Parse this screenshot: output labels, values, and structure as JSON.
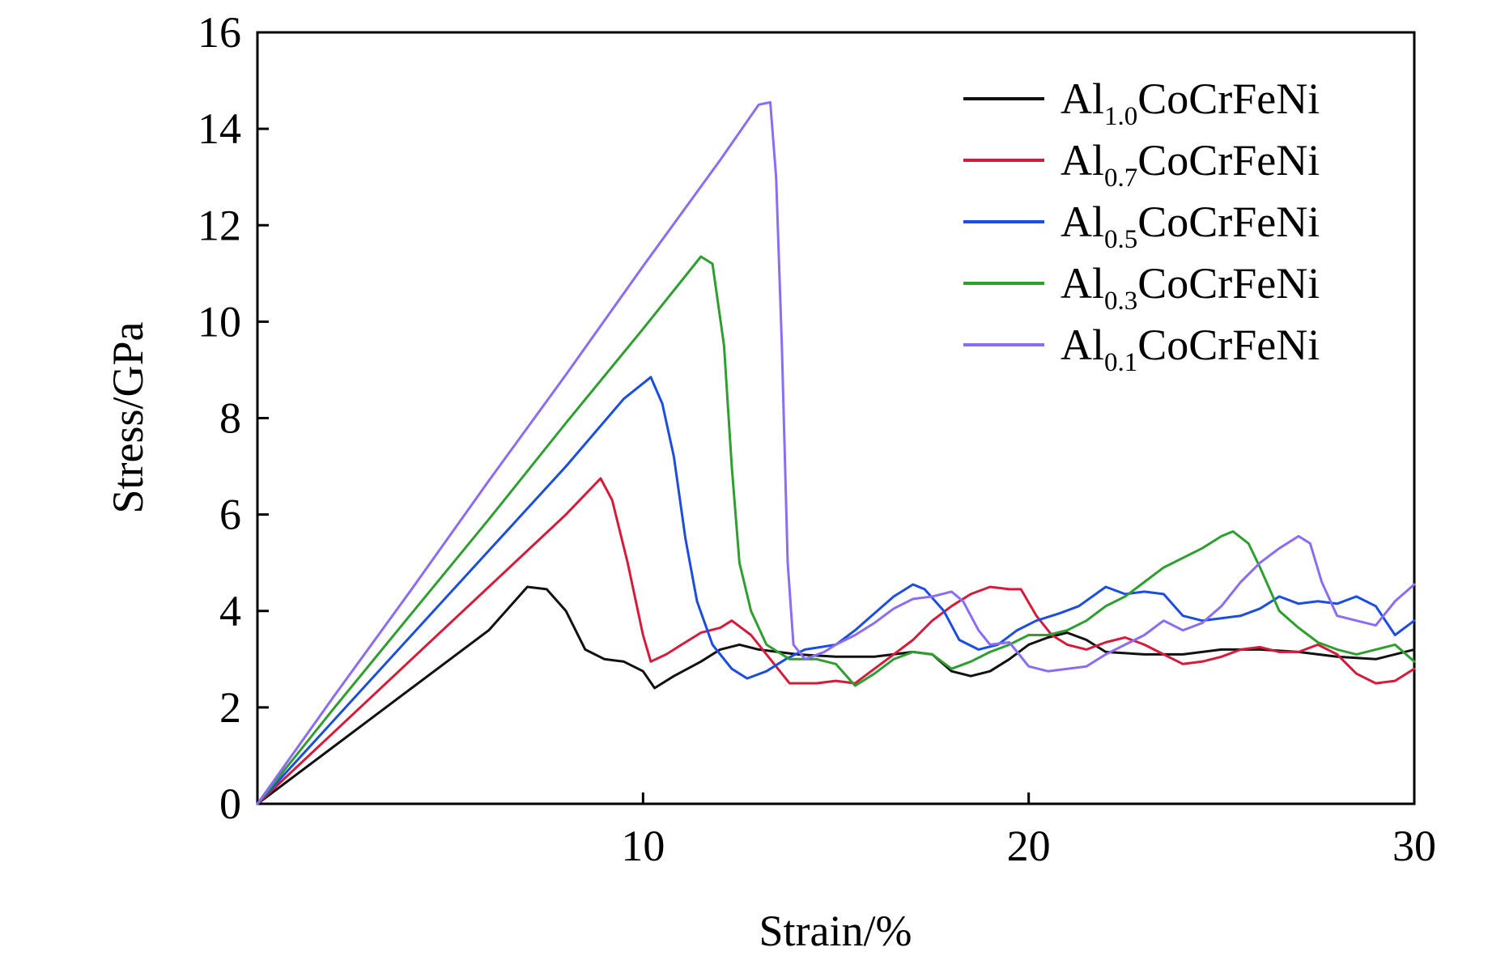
{
  "chart_data": {
    "type": "line",
    "title": "",
    "xlabel": "Strain/%",
    "ylabel": "Stress/GPa",
    "xlim": [
      0,
      30
    ],
    "ylim": [
      0,
      16
    ],
    "x_ticks": [
      10,
      20,
      30
    ],
    "y_ticks": [
      0,
      2,
      4,
      6,
      8,
      10,
      12,
      14,
      16
    ],
    "legend_position": "top-right",
    "series": [
      {
        "name": "Al1.0CoCrFeNi",
        "label_base": "Al",
        "label_sub": "1.0",
        "label_rest": "CoCrFeNi",
        "color": "#111111",
        "points": [
          [
            0,
            0
          ],
          [
            2,
            1.2
          ],
          [
            4,
            2.4
          ],
          [
            6,
            3.6
          ],
          [
            7,
            4.5
          ],
          [
            7.5,
            4.45
          ],
          [
            8,
            4.0
          ],
          [
            8.5,
            3.2
          ],
          [
            9,
            3.0
          ],
          [
            9.5,
            2.95
          ],
          [
            10,
            2.75
          ],
          [
            10.3,
            2.4
          ],
          [
            10.8,
            2.65
          ],
          [
            11.5,
            2.95
          ],
          [
            12,
            3.2
          ],
          [
            12.5,
            3.3
          ],
          [
            13,
            3.2
          ],
          [
            14,
            3.1
          ],
          [
            15,
            3.05
          ],
          [
            16,
            3.05
          ],
          [
            17,
            3.15
          ],
          [
            17.5,
            3.1
          ],
          [
            18,
            2.75
          ],
          [
            18.5,
            2.65
          ],
          [
            19,
            2.75
          ],
          [
            19.5,
            3.0
          ],
          [
            20,
            3.3
          ],
          [
            20.5,
            3.45
          ],
          [
            21,
            3.55
          ],
          [
            21.5,
            3.4
          ],
          [
            22,
            3.15
          ],
          [
            23,
            3.1
          ],
          [
            24,
            3.1
          ],
          [
            25,
            3.2
          ],
          [
            26,
            3.2
          ],
          [
            27,
            3.15
          ],
          [
            28,
            3.05
          ],
          [
            29,
            3.0
          ],
          [
            30,
            3.2
          ]
        ]
      },
      {
        "name": "Al0.7CoCrFeNi",
        "label_base": "Al",
        "label_sub": "0.7",
        "label_rest": "CoCrFeNi",
        "color": "#d41c3a",
        "points": [
          [
            0,
            0
          ],
          [
            2,
            1.5
          ],
          [
            4,
            3.0
          ],
          [
            6,
            4.5
          ],
          [
            8,
            6.0
          ],
          [
            8.9,
            6.75
          ],
          [
            9.2,
            6.3
          ],
          [
            9.6,
            5.0
          ],
          [
            10,
            3.5
          ],
          [
            10.2,
            2.95
          ],
          [
            10.6,
            3.1
          ],
          [
            11,
            3.3
          ],
          [
            11.5,
            3.55
          ],
          [
            12,
            3.65
          ],
          [
            12.3,
            3.8
          ],
          [
            12.8,
            3.5
          ],
          [
            13.2,
            3.1
          ],
          [
            13.8,
            2.5
          ],
          [
            14.5,
            2.5
          ],
          [
            15,
            2.55
          ],
          [
            15.5,
            2.5
          ],
          [
            16,
            2.8
          ],
          [
            16.5,
            3.1
          ],
          [
            17,
            3.4
          ],
          [
            17.5,
            3.8
          ],
          [
            18,
            4.1
          ],
          [
            18.5,
            4.35
          ],
          [
            19,
            4.5
          ],
          [
            19.5,
            4.45
          ],
          [
            19.8,
            4.45
          ],
          [
            20.2,
            3.9
          ],
          [
            20.6,
            3.5
          ],
          [
            21,
            3.3
          ],
          [
            21.5,
            3.2
          ],
          [
            22,
            3.35
          ],
          [
            22.5,
            3.45
          ],
          [
            23,
            3.3
          ],
          [
            23.5,
            3.1
          ],
          [
            24,
            2.9
          ],
          [
            24.5,
            2.95
          ],
          [
            25,
            3.05
          ],
          [
            25.5,
            3.2
          ],
          [
            26,
            3.25
          ],
          [
            26.5,
            3.15
          ],
          [
            27,
            3.15
          ],
          [
            27.5,
            3.3
          ],
          [
            28,
            3.1
          ],
          [
            28.5,
            2.7
          ],
          [
            29,
            2.5
          ],
          [
            29.5,
            2.55
          ],
          [
            30,
            2.8
          ]
        ]
      },
      {
        "name": "Al0.5CoCrFeNi",
        "label_base": "Al",
        "label_sub": "0.5",
        "label_rest": "CoCrFeNi",
        "color": "#1b4ee0",
        "points": [
          [
            0,
            0
          ],
          [
            2,
            1.75
          ],
          [
            4,
            3.5
          ],
          [
            6,
            5.25
          ],
          [
            8,
            7.0
          ],
          [
            9.5,
            8.4
          ],
          [
            10.2,
            8.85
          ],
          [
            10.5,
            8.3
          ],
          [
            10.8,
            7.2
          ],
          [
            11.1,
            5.5
          ],
          [
            11.4,
            4.2
          ],
          [
            11.8,
            3.3
          ],
          [
            12.3,
            2.8
          ],
          [
            12.7,
            2.6
          ],
          [
            13.2,
            2.75
          ],
          [
            13.7,
            3.0
          ],
          [
            14.2,
            3.2
          ],
          [
            15,
            3.3
          ],
          [
            15.5,
            3.6
          ],
          [
            16,
            3.95
          ],
          [
            16.5,
            4.3
          ],
          [
            17,
            4.55
          ],
          [
            17.3,
            4.45
          ],
          [
            17.8,
            4.0
          ],
          [
            18.2,
            3.4
          ],
          [
            18.7,
            3.2
          ],
          [
            19.2,
            3.3
          ],
          [
            19.7,
            3.6
          ],
          [
            20.2,
            3.8
          ],
          [
            20.8,
            3.95
          ],
          [
            21.3,
            4.1
          ],
          [
            22,
            4.5
          ],
          [
            22.5,
            4.35
          ],
          [
            23,
            4.4
          ],
          [
            23.5,
            4.35
          ],
          [
            24,
            3.9
          ],
          [
            24.5,
            3.8
          ],
          [
            25,
            3.85
          ],
          [
            25.5,
            3.9
          ],
          [
            26,
            4.05
          ],
          [
            26.5,
            4.3
          ],
          [
            27,
            4.15
          ],
          [
            27.5,
            4.2
          ],
          [
            28,
            4.15
          ],
          [
            28.5,
            4.3
          ],
          [
            29,
            4.1
          ],
          [
            29.5,
            3.5
          ],
          [
            30,
            3.8
          ]
        ]
      },
      {
        "name": "Al0.3CoCrFeNi",
        "label_base": "Al",
        "label_sub": "0.3",
        "label_rest": "CoCrFeNi",
        "color": "#2e9e2e",
        "points": [
          [
            0,
            0
          ],
          [
            2,
            2.0
          ],
          [
            4,
            3.95
          ],
          [
            6,
            5.9
          ],
          [
            8,
            7.9
          ],
          [
            10,
            9.85
          ],
          [
            11.5,
            11.35
          ],
          [
            11.8,
            11.2
          ],
          [
            12.1,
            9.5
          ],
          [
            12.3,
            7.0
          ],
          [
            12.5,
            5.0
          ],
          [
            12.8,
            4.0
          ],
          [
            13.2,
            3.3
          ],
          [
            13.8,
            3.0
          ],
          [
            14.5,
            3.0
          ],
          [
            15,
            2.9
          ],
          [
            15.5,
            2.45
          ],
          [
            16,
            2.7
          ],
          [
            16.5,
            3.0
          ],
          [
            17,
            3.15
          ],
          [
            17.5,
            3.1
          ],
          [
            18,
            2.8
          ],
          [
            18.5,
            2.95
          ],
          [
            19,
            3.15
          ],
          [
            19.5,
            3.3
          ],
          [
            20,
            3.5
          ],
          [
            20.5,
            3.5
          ],
          [
            21,
            3.6
          ],
          [
            21.5,
            3.8
          ],
          [
            22,
            4.1
          ],
          [
            22.5,
            4.3
          ],
          [
            23,
            4.6
          ],
          [
            23.5,
            4.9
          ],
          [
            24,
            5.1
          ],
          [
            24.5,
            5.3
          ],
          [
            25,
            5.55
          ],
          [
            25.3,
            5.65
          ],
          [
            25.7,
            5.4
          ],
          [
            26,
            4.9
          ],
          [
            26.5,
            4.0
          ],
          [
            27,
            3.65
          ],
          [
            27.5,
            3.35
          ],
          [
            28,
            3.2
          ],
          [
            28.5,
            3.1
          ],
          [
            29,
            3.2
          ],
          [
            29.5,
            3.3
          ],
          [
            30,
            2.95
          ]
        ]
      },
      {
        "name": "Al0.1CoCrFeNi",
        "label_base": "Al",
        "label_sub": "0.1",
        "label_rest": "CoCrFeNi",
        "color": "#8a6cf5",
        "points": [
          [
            0,
            0
          ],
          [
            2,
            2.25
          ],
          [
            4,
            4.45
          ],
          [
            6,
            6.7
          ],
          [
            8,
            8.9
          ],
          [
            10,
            11.15
          ],
          [
            12,
            13.35
          ],
          [
            13,
            14.5
          ],
          [
            13.3,
            14.55
          ],
          [
            13.45,
            13.0
          ],
          [
            13.6,
            9.5
          ],
          [
            13.75,
            5.0
          ],
          [
            13.9,
            3.3
          ],
          [
            14.2,
            3.0
          ],
          [
            14.7,
            3.15
          ],
          [
            15,
            3.3
          ],
          [
            15.5,
            3.5
          ],
          [
            16,
            3.75
          ],
          [
            16.5,
            4.05
          ],
          [
            17,
            4.25
          ],
          [
            17.5,
            4.3
          ],
          [
            18,
            4.4
          ],
          [
            18.3,
            4.2
          ],
          [
            18.7,
            3.6
          ],
          [
            19,
            3.3
          ],
          [
            19.5,
            3.35
          ],
          [
            20,
            2.85
          ],
          [
            20.5,
            2.75
          ],
          [
            21,
            2.8
          ],
          [
            21.5,
            2.85
          ],
          [
            22,
            3.1
          ],
          [
            22.5,
            3.3
          ],
          [
            23,
            3.5
          ],
          [
            23.5,
            3.8
          ],
          [
            24,
            3.6
          ],
          [
            24.5,
            3.75
          ],
          [
            25,
            4.1
          ],
          [
            25.5,
            4.6
          ],
          [
            26,
            5.0
          ],
          [
            26.5,
            5.3
          ],
          [
            27,
            5.55
          ],
          [
            27.3,
            5.4
          ],
          [
            27.6,
            4.6
          ],
          [
            28,
            3.9
          ],
          [
            28.5,
            3.8
          ],
          [
            29,
            3.7
          ],
          [
            29.5,
            4.2
          ],
          [
            30,
            4.55
          ]
        ]
      }
    ]
  }
}
